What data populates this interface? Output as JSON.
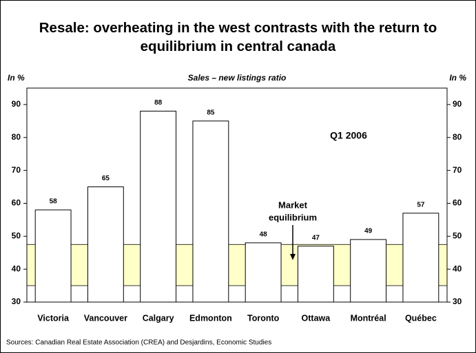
{
  "chart_data": {
    "type": "bar",
    "title": "Resale: overheating in the west contrasts with the return to equilibrium in central canada",
    "subtitle": "Sales – new listings ratio",
    "y_label": "In %",
    "y2_label": "In %",
    "annotations": [
      "Q1 2006",
      "Market",
      "equilibrium"
    ],
    "source": "Sources: Canadian Real Estate Association (CREA) and Desjardins, Economic Studies",
    "categories": [
      "Victoria",
      "Vancouver",
      "Calgary",
      "Edmonton",
      "Toronto",
      "Ottawa",
      "Montréal",
      "Québec"
    ],
    "values": [
      58,
      65,
      88,
      85,
      48,
      47,
      49,
      57
    ],
    "color": "#ffffff",
    "equilibrium_band": [
      35,
      47.5
    ],
    "band_color": "#ffffc8",
    "ylim": [
      30,
      95
    ],
    "yticks": [
      30,
      40,
      50,
      60,
      70,
      80,
      90
    ],
    "y2lim": [
      30,
      95
    ],
    "y2ticks": [
      30,
      40,
      50,
      60,
      70,
      80,
      90
    ],
    "grid": false
  }
}
